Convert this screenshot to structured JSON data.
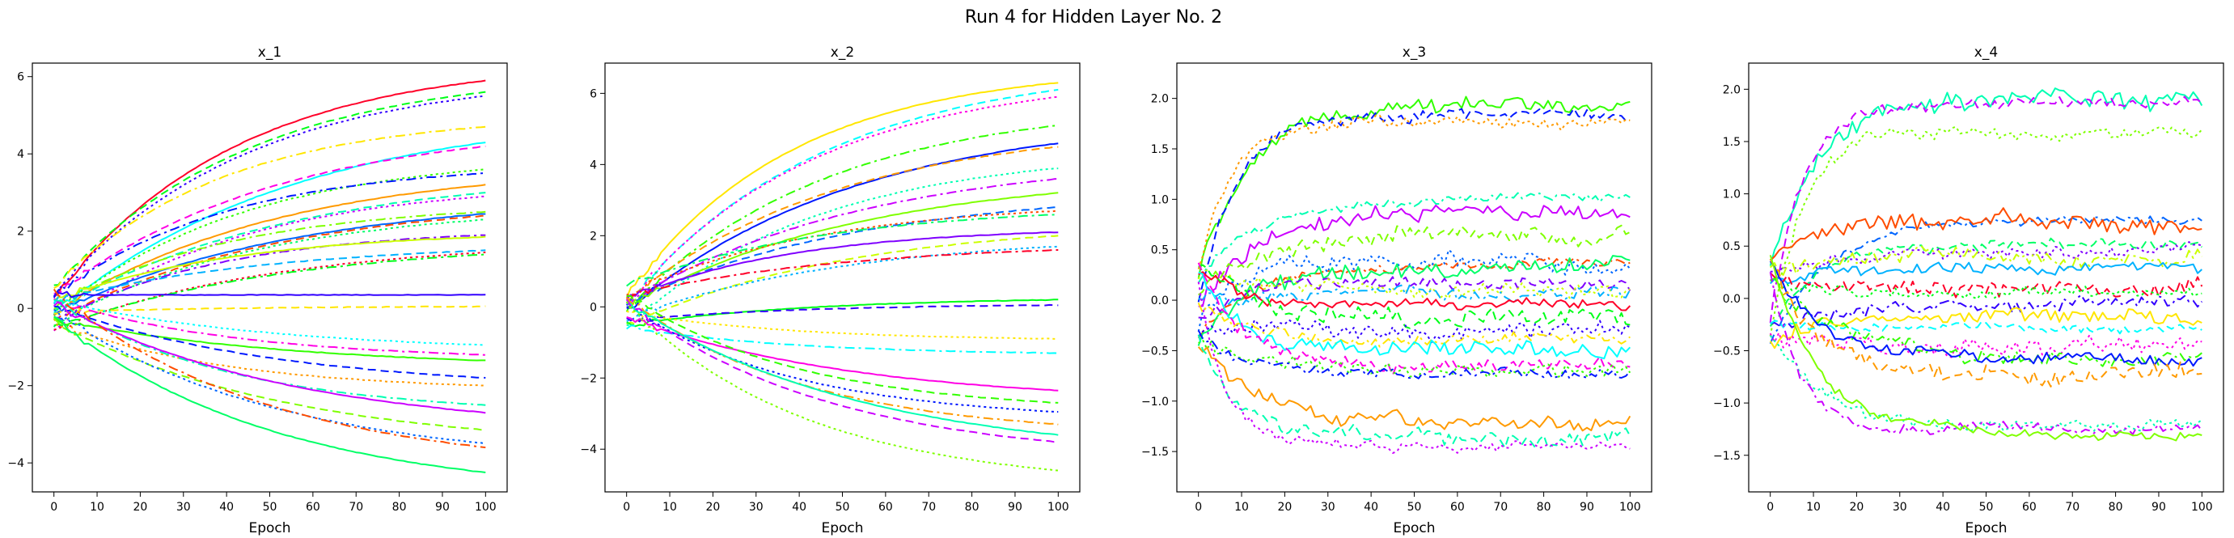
{
  "figure": {
    "title": "Run 4 for Hidden Layer No. 2"
  },
  "colors": [
    "#ff0029",
    "#ff4d00",
    "#ff9a00",
    "#ffe600",
    "#cbff00",
    "#7fff00",
    "#32ff00",
    "#00ff19",
    "#00ff66",
    "#00ffb2",
    "#00ffff",
    "#00b2ff",
    "#0066ff",
    "#0019ff",
    "#3200ff",
    "#7f00ff",
    "#cb00ff",
    "#ff00e5"
  ],
  "chart_data": [
    {
      "type": "line",
      "title": "x_1",
      "xlabel": "Epoch",
      "ylabel": "",
      "xlim": [
        -5,
        105
      ],
      "ylim": [
        -4.75,
        6.35
      ],
      "xticks": [
        0,
        10,
        20,
        30,
        40,
        50,
        60,
        70,
        80,
        90,
        100
      ],
      "yticks": [
        -4,
        -2,
        0,
        2,
        4,
        6
      ],
      "grid": false,
      "final_values": [
        5.9,
        5.6,
        5.5,
        4.7,
        4.3,
        4.2,
        3.6,
        3.5,
        3.2,
        3.0,
        2.9,
        2.5,
        2.45,
        2.4,
        2.3,
        1.9,
        1.85,
        1.5,
        1.45,
        1.4,
        0.35,
        0.05,
        -0.95,
        -1.2,
        -1.35,
        -1.8,
        -2.0,
        -2.5,
        -2.7,
        -3.15,
        -3.5,
        -3.6,
        -4.25
      ]
    },
    {
      "type": "line",
      "title": "x_2",
      "xlabel": "Epoch",
      "ylabel": "",
      "xlim": [
        -5,
        105
      ],
      "ylim": [
        -5.2,
        6.85
      ],
      "xticks": [
        0,
        10,
        20,
        30,
        40,
        50,
        60,
        70,
        80,
        90,
        100
      ],
      "yticks": [
        -4,
        -2,
        0,
        2,
        4,
        6
      ],
      "grid": false,
      "final_values": [
        6.3,
        6.1,
        5.9,
        5.1,
        4.6,
        4.5,
        3.9,
        3.6,
        3.2,
        2.8,
        2.7,
        2.6,
        2.1,
        2.0,
        1.7,
        1.6,
        0.2,
        0.05,
        -0.9,
        -1.3,
        -2.35,
        -2.7,
        -2.95,
        -3.3,
        -3.6,
        -3.8,
        -4.6
      ]
    },
    {
      "type": "line",
      "title": "x_3",
      "xlabel": "Epoch",
      "ylabel": "",
      "xlim": [
        -5,
        105
      ],
      "ylim": [
        -1.9,
        2.35
      ],
      "xticks": [
        0,
        10,
        20,
        30,
        40,
        50,
        60,
        70,
        80,
        90,
        100
      ],
      "yticks": [
        -1.5,
        -1.0,
        -0.5,
        0.0,
        0.5,
        1.0,
        1.5,
        2.0
      ],
      "grid": false,
      "final_values": [
        1.95,
        1.85,
        1.78,
        1.0,
        0.85,
        0.62,
        0.38,
        0.35,
        0.3,
        0.2,
        0.1,
        0.05,
        -0.05,
        -0.15,
        -0.3,
        -0.4,
        -0.5,
        -0.65,
        -0.7,
        -0.75,
        -1.2,
        -1.35,
        -1.45
      ]
    },
    {
      "type": "line",
      "title": "x_4",
      "xlabel": "Epoch",
      "ylabel": "",
      "xlim": [
        -5,
        105
      ],
      "ylim": [
        -1.85,
        2.25
      ],
      "xticks": [
        0,
        10,
        20,
        30,
        40,
        50,
        60,
        70,
        80,
        90,
        100
      ],
      "yticks": [
        -1.5,
        -1.0,
        -0.5,
        0.0,
        0.5,
        1.0,
        1.5,
        2.0
      ],
      "grid": false,
      "final_values": [
        1.9,
        1.85,
        1.6,
        0.75,
        0.7,
        0.5,
        0.45,
        0.4,
        0.3,
        0.1,
        0.05,
        -0.05,
        -0.2,
        -0.3,
        -0.45,
        -0.55,
        -0.6,
        -0.75,
        -1.2,
        -1.25,
        -1.3
      ]
    }
  ]
}
